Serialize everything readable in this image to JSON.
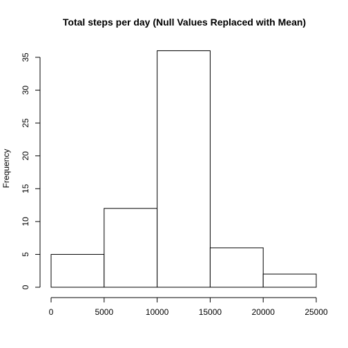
{
  "chart_data": {
    "type": "bar",
    "title": "Total steps per day (Null Values Replaced with Mean)",
    "xlabel": "",
    "ylabel": "Frequency",
    "bins": [
      {
        "from": 0,
        "to": 5000,
        "count": 5
      },
      {
        "from": 5000,
        "to": 10000,
        "count": 12
      },
      {
        "from": 10000,
        "to": 15000,
        "count": 36
      },
      {
        "from": 15000,
        "to": 20000,
        "count": 6
      },
      {
        "from": 20000,
        "to": 25000,
        "count": 2
      }
    ],
    "xlim": [
      0,
      25000
    ],
    "ylim": [
      0,
      36
    ],
    "x_ticks": [
      0,
      5000,
      10000,
      15000,
      20000,
      25000
    ],
    "y_ticks": [
      0,
      5,
      10,
      15,
      20,
      25,
      30,
      35
    ],
    "grid": false,
    "bar_fill": "#ffffff",
    "bar_stroke": "#000000"
  }
}
